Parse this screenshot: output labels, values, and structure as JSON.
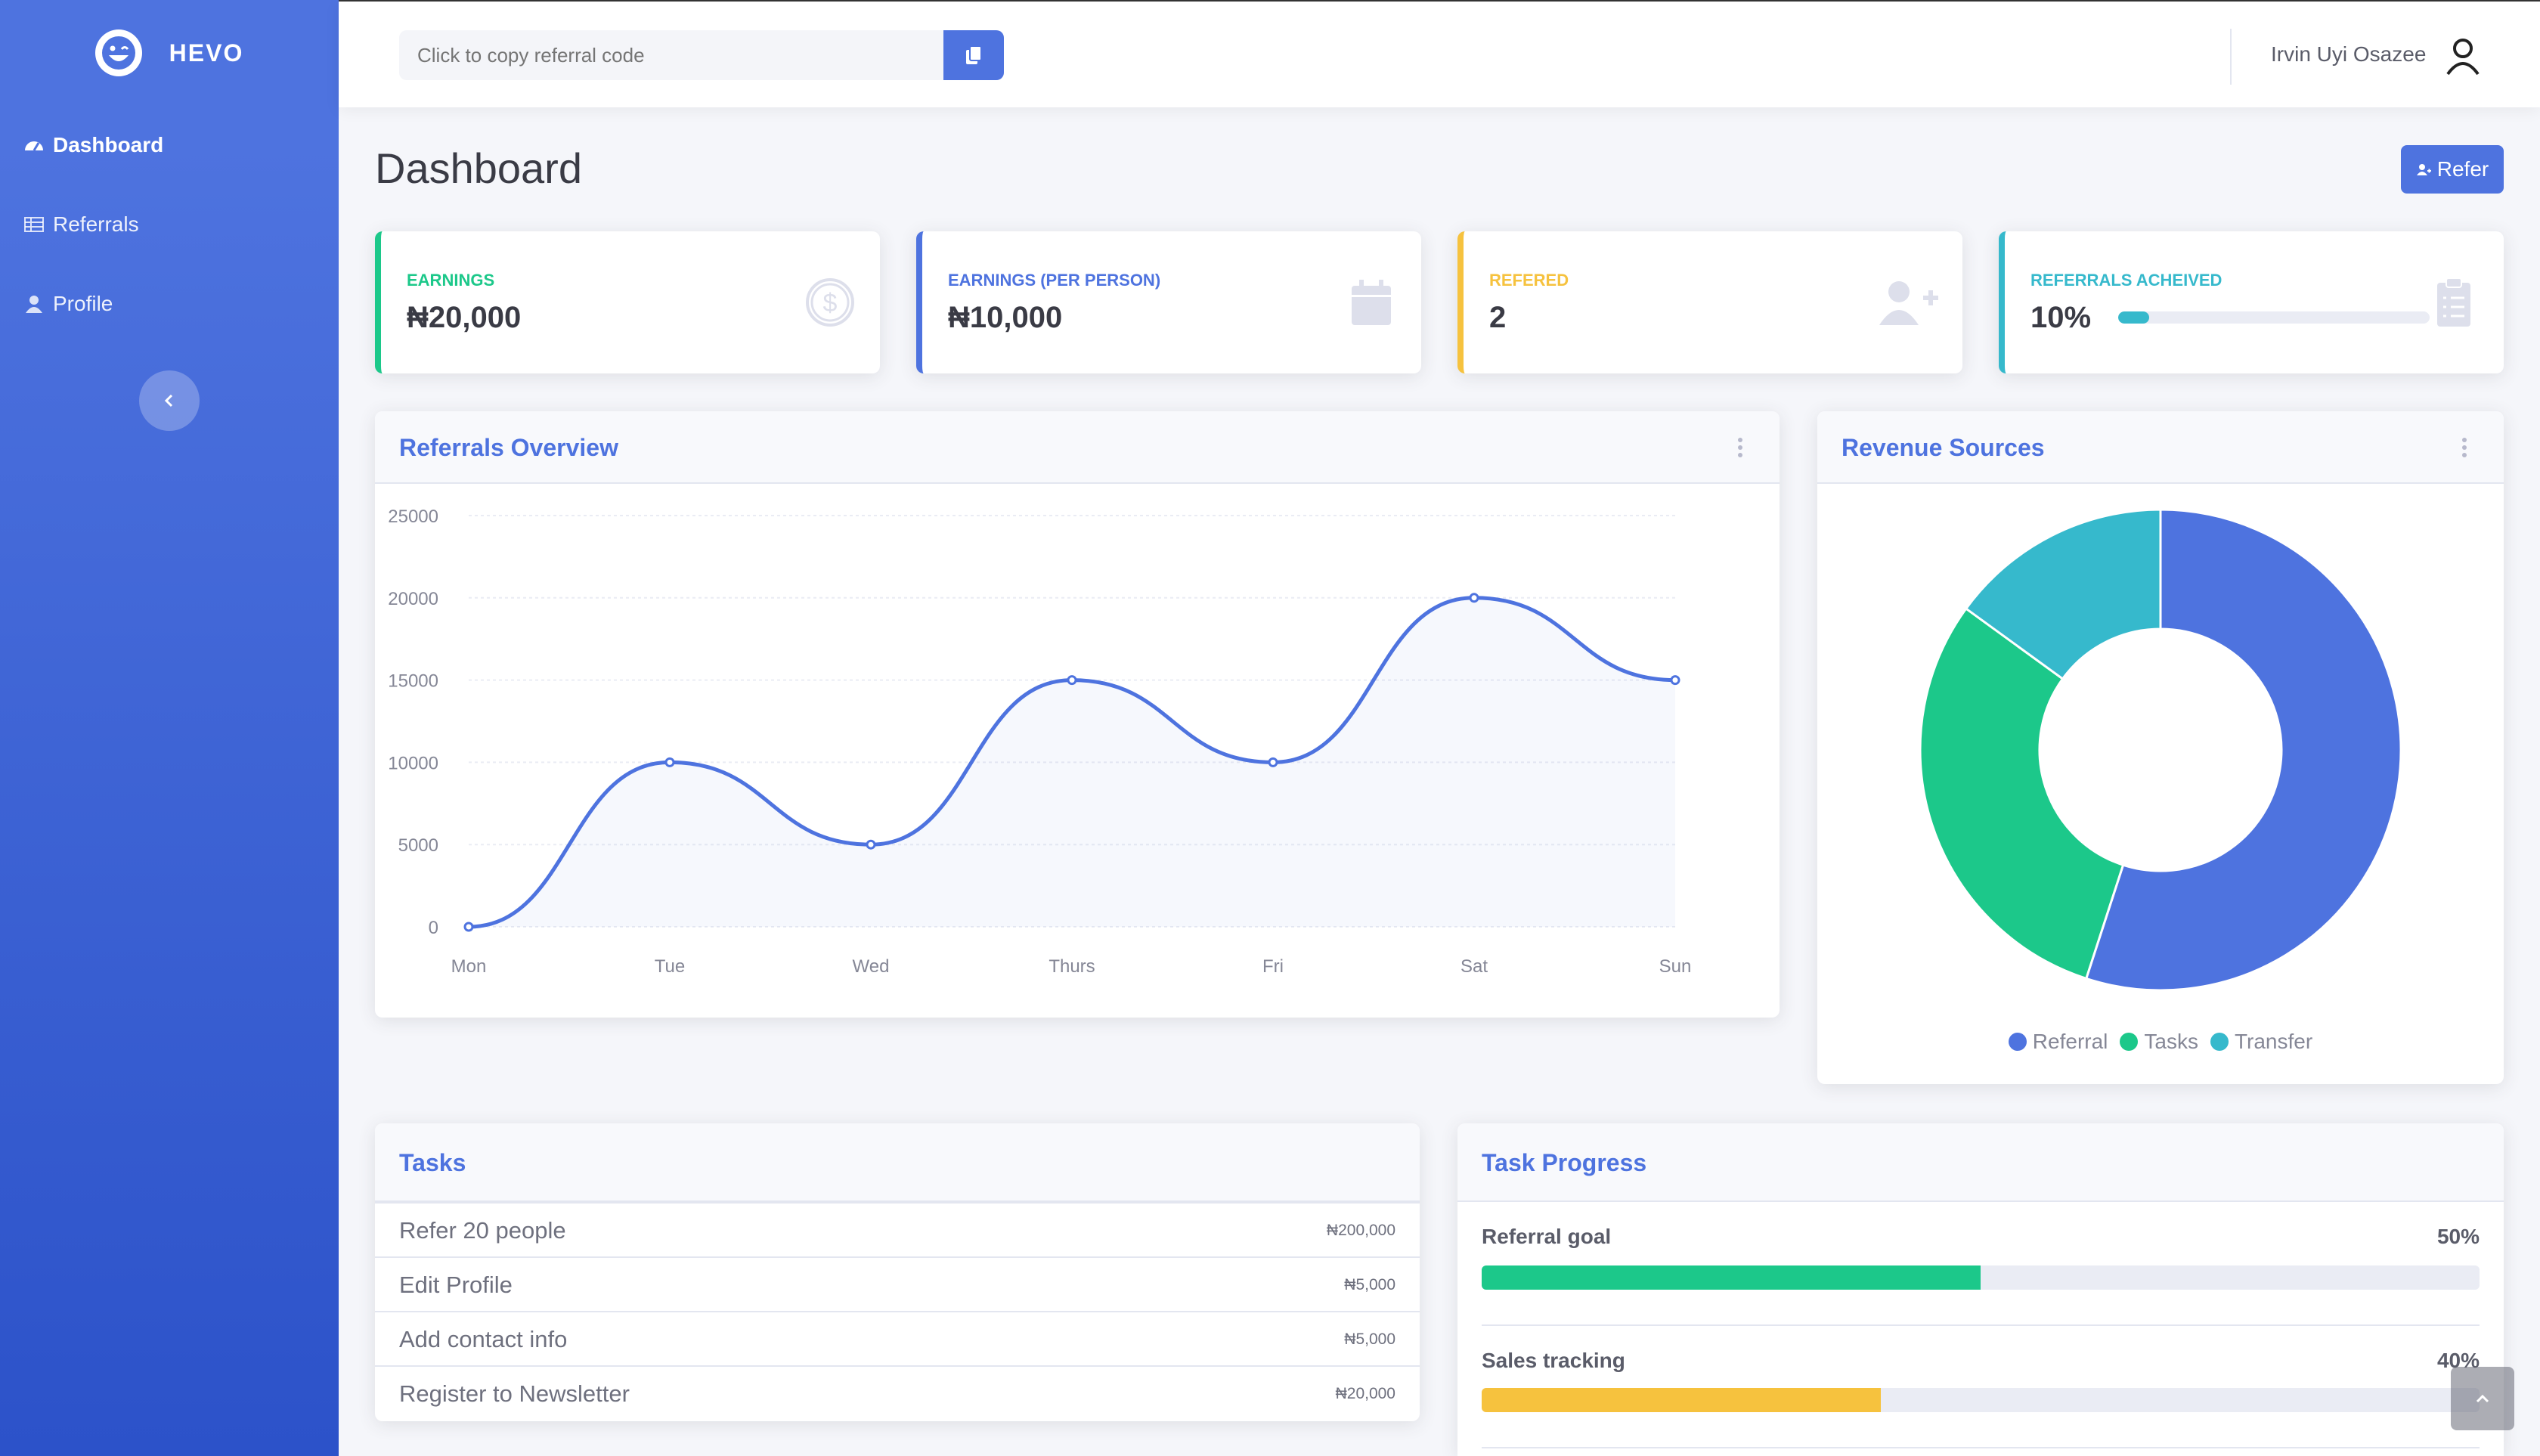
{
  "brand": {
    "name": "HEVO"
  },
  "sidebar": {
    "items": [
      {
        "label": "Dashboard",
        "icon": "gauge-icon",
        "active": true
      },
      {
        "label": "Referrals",
        "icon": "table-icon",
        "active": false
      },
      {
        "label": "Profile",
        "icon": "user-icon",
        "active": false
      }
    ]
  },
  "topbar": {
    "referral_placeholder": "Click to copy referral code",
    "user_name": "Irvin Uyi Osazee"
  },
  "page": {
    "title": "Dashboard",
    "refer_label": "Refer"
  },
  "stats": [
    {
      "label": "EARNINGS",
      "value": "₦20,000",
      "color": "#1cc88a",
      "icon": "dollar-icon"
    },
    {
      "label": "EARNINGS (PER PERSON)",
      "value": "₦10,000",
      "color": "#4e73df",
      "icon": "calendar-icon"
    },
    {
      "label": "REFERED",
      "value": "2",
      "color": "#f6c23e",
      "icon": "user-plus-icon"
    },
    {
      "label": "REFERRALS ACHEIVED",
      "value": "10%",
      "color": "#36b9cc",
      "icon": "clipboard-icon",
      "progress": 0.1
    }
  ],
  "overview": {
    "title": "Referrals Overview"
  },
  "revenue": {
    "title": "Revenue Sources"
  },
  "chart_data": [
    {
      "type": "area",
      "title": "Referrals Overview",
      "x": [
        "Mon",
        "Tue",
        "Wed",
        "Thurs",
        "Fri",
        "Sat",
        "Sun"
      ],
      "series": [
        {
          "values": [
            0,
            10000,
            5000,
            15000,
            10000,
            20000,
            15000
          ]
        }
      ],
      "ylim": [
        0,
        25000
      ],
      "yticks": [
        "0",
        "5000",
        "10000",
        "15000",
        "20000",
        "25000"
      ],
      "grid": true,
      "color": "#4e73df"
    },
    {
      "type": "pie",
      "title": "Revenue Sources",
      "labels": [
        "Referral",
        "Tasks",
        "Transfer"
      ],
      "values": [
        55,
        30,
        15
      ],
      "colors": [
        "#4e73df",
        "#1cc88a",
        "#36b9cc"
      ],
      "donut": true,
      "legend": "bottom"
    }
  ],
  "tasks": {
    "title": "Tasks",
    "items": [
      {
        "name": "Refer 20 people",
        "amount": "₦200,000"
      },
      {
        "name": "Edit Profile",
        "amount": "₦5,000"
      },
      {
        "name": "Add contact info",
        "amount": "₦5,000"
      },
      {
        "name": "Register to Newsletter",
        "amount": "₦20,000"
      }
    ]
  },
  "task_progress": {
    "title": "Task Progress",
    "items": [
      {
        "label": "Referral goal",
        "pct_text": "50%",
        "value": 0.5,
        "color": "#1cc88a"
      },
      {
        "label": "Sales tracking",
        "pct_text": "40%",
        "value": 0.4,
        "color": "#f6c23e"
      }
    ]
  }
}
